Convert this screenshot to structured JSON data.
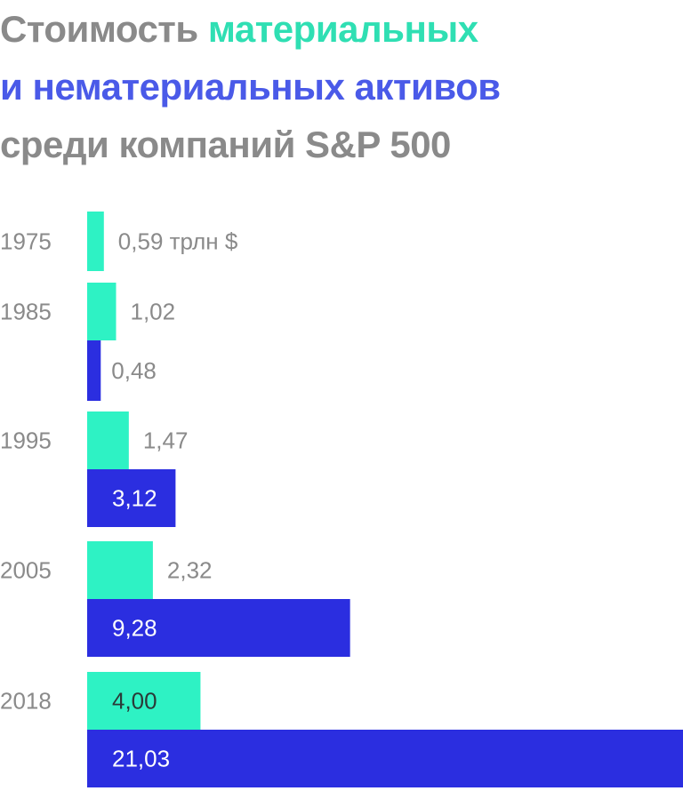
{
  "title": {
    "line1_prefix": "Стоимость ",
    "line1_highlight": "материальных",
    "line2": "и нематериальных активов",
    "line3": "среди компаний S&P 500"
  },
  "colors": {
    "gray_text": "#8a8a8a",
    "material": "#2ef2c4",
    "intangible": "#2b2ee0",
    "material_title": "#2fdfb3",
    "intangible_title": "#4a5ae8",
    "label_on_bar": "#ffffff"
  },
  "chart_data": {
    "type": "bar",
    "orientation": "horizontal",
    "unit": "трлн $",
    "categories": [
      "1975",
      "1985",
      "1995",
      "2005",
      "2018"
    ],
    "series": [
      {
        "key": "material",
        "values": [
          0.59,
          1.02,
          1.47,
          2.32,
          4.0
        ],
        "labels": [
          "0,59 трлн $",
          "1,02",
          "1,47",
          "2,32",
          "4,00"
        ]
      },
      {
        "key": "intangible",
        "values": [
          null,
          0.48,
          3.12,
          9.28,
          21.03
        ],
        "labels": [
          null,
          "0,48",
          "3,12",
          "9,28",
          "21,03"
        ]
      }
    ],
    "xlim": [
      0,
      21.03
    ],
    "grid": false,
    "legend": "title-colored"
  }
}
